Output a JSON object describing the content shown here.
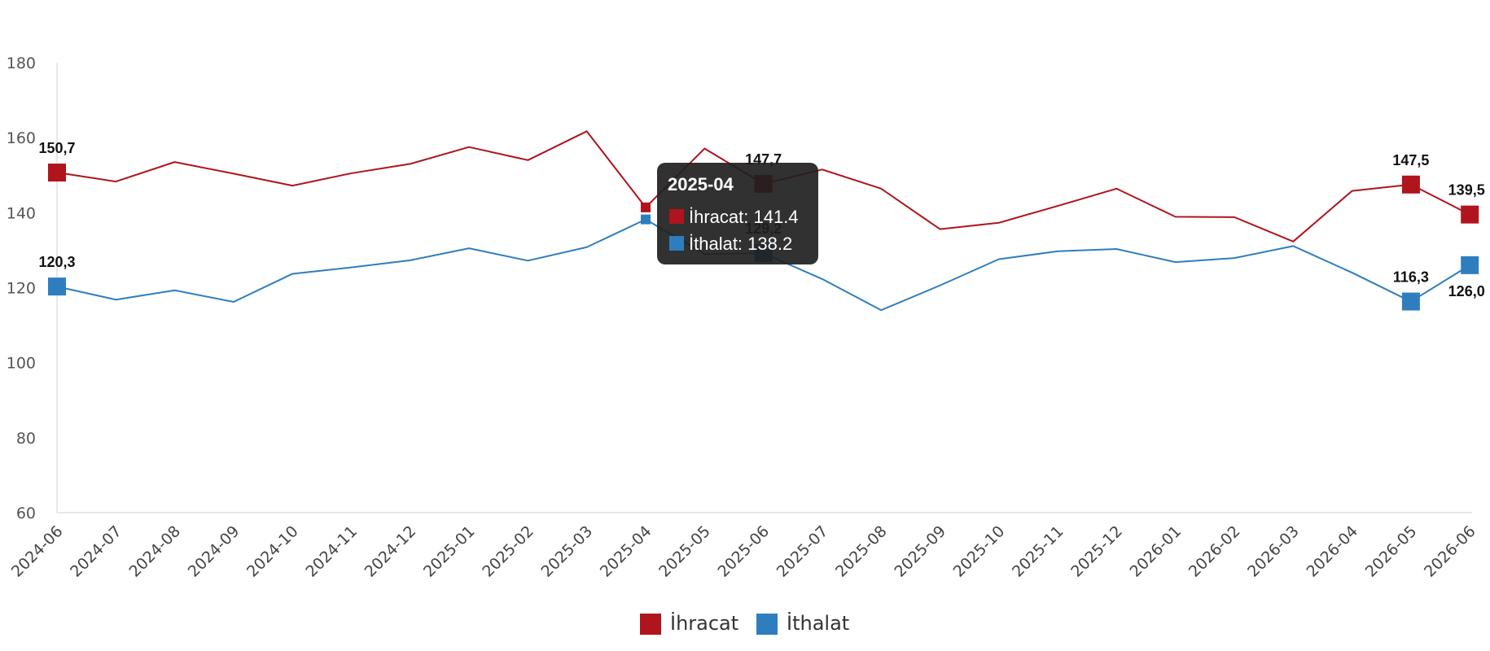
{
  "chart_data": {
    "type": "line",
    "title": "",
    "xlabel": "",
    "ylabel": "",
    "ylim": [
      60,
      180
    ],
    "yticks": [
      60,
      80,
      100,
      120,
      140,
      160,
      180
    ],
    "grid": false,
    "legend_placement": "bottom-center",
    "categories": [
      "2024-06",
      "2024-07",
      "2024-08",
      "2024-09",
      "2024-10",
      "2024-11",
      "2024-12",
      "2025-01",
      "2025-02",
      "2025-03",
      "2025-04",
      "2025-05",
      "2025-06",
      "2025-07",
      "2025-08",
      "2025-09",
      "2025-10",
      "2025-11",
      "2025-12",
      "2026-01",
      "2026-02",
      "2026-03",
      "2026-04",
      "2026-05",
      "2026-06"
    ],
    "series": [
      {
        "name": "İhracat",
        "color": "#b0141c",
        "values": [
          150.7,
          148.3,
          153.5,
          150.4,
          147.2,
          150.5,
          153.0,
          157.5,
          154.0,
          161.7,
          141.4,
          157.1,
          147.7,
          151.5,
          146.4,
          135.6,
          137.3,
          141.8,
          146.4,
          138.9,
          138.8,
          132.3,
          145.8,
          147.5,
          139.5
        ]
      },
      {
        "name": "İthalat",
        "color": "#2e7ebf",
        "values": [
          120.3,
          116.8,
          119.3,
          116.2,
          123.7,
          125.4,
          127.3,
          130.5,
          127.2,
          130.8,
          138.2,
          129.0,
          129.2,
          122.3,
          114.0,
          120.6,
          127.6,
          129.7,
          130.3,
          126.8,
          127.9,
          131.1,
          124.0,
          116.3,
          126.0
        ]
      }
    ],
    "data_labels": [
      {
        "series": 0,
        "index": 0,
        "text": "150,7",
        "pos": "above"
      },
      {
        "series": 0,
        "index": 12,
        "text": "147,7",
        "pos": "above"
      },
      {
        "series": 0,
        "index": 23,
        "text": "147,5",
        "pos": "above"
      },
      {
        "series": 0,
        "index": 24,
        "text": "139,5",
        "pos": "above"
      },
      {
        "series": 1,
        "index": 0,
        "text": "120,3",
        "pos": "above"
      },
      {
        "series": 1,
        "index": 12,
        "text": "129,2",
        "pos": "above"
      },
      {
        "series": 1,
        "index": 23,
        "text": "116,3",
        "pos": "above"
      },
      {
        "series": 1,
        "index": 24,
        "text": "126,0",
        "pos": "below"
      }
    ],
    "tooltip": {
      "index": 10,
      "title": "2025-04",
      "lines": [
        "İhracat: 141.4",
        "İthalat: 138.2"
      ]
    }
  }
}
